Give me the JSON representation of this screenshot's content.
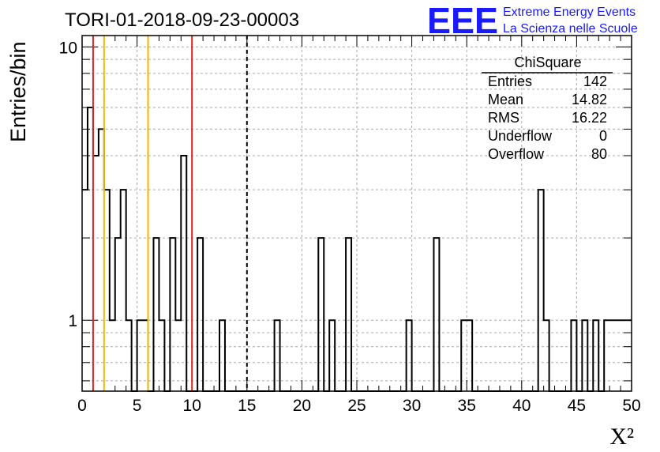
{
  "chart_data": {
    "type": "bar",
    "histogram_name": "ChiSquare",
    "title": "TORI-01-2018-09-23-00003",
    "xlabel": "X²",
    "ylabel": "Entries/bin",
    "xlim": [
      0,
      50
    ],
    "ylim": [
      0.55,
      11
    ],
    "log_y": true,
    "grid": true,
    "bin_width": 0.5,
    "x_ticks": [
      "0",
      "5",
      "10",
      "15",
      "20",
      "25",
      "30",
      "35",
      "40",
      "45",
      "50"
    ],
    "y_ticks": [
      "1",
      "10"
    ],
    "bins": [
      {
        "x": 0.0,
        "y": 3
      },
      {
        "x": 0.5,
        "y": 6
      },
      {
        "x": 1.0,
        "y": 4
      },
      {
        "x": 1.5,
        "y": 5
      },
      {
        "x": 2.0,
        "y": 3
      },
      {
        "x": 2.5,
        "y": 1
      },
      {
        "x": 3.0,
        "y": 2
      },
      {
        "x": 3.5,
        "y": 3
      },
      {
        "x": 4.0,
        "y": 1
      },
      {
        "x": 5.0,
        "y": 1
      },
      {
        "x": 5.5,
        "y": 1
      },
      {
        "x": 6.5,
        "y": 2
      },
      {
        "x": 7.0,
        "y": 1
      },
      {
        "x": 8.0,
        "y": 2
      },
      {
        "x": 8.5,
        "y": 1
      },
      {
        "x": 9.0,
        "y": 4
      },
      {
        "x": 10.5,
        "y": 2
      },
      {
        "x": 12.5,
        "y": 1
      },
      {
        "x": 17.5,
        "y": 1
      },
      {
        "x": 21.5,
        "y": 2
      },
      {
        "x": 22.5,
        "y": 1
      },
      {
        "x": 24.0,
        "y": 2
      },
      {
        "x": 29.5,
        "y": 1
      },
      {
        "x": 32.0,
        "y": 2
      },
      {
        "x": 34.5,
        "y": 1
      },
      {
        "x": 35.0,
        "y": 1
      },
      {
        "x": 41.5,
        "y": 3
      },
      {
        "x": 42.0,
        "y": 1
      },
      {
        "x": 44.5,
        "y": 1
      },
      {
        "x": 45.5,
        "y": 1
      },
      {
        "x": 46.5,
        "y": 1
      },
      {
        "x": 47.5,
        "y": 1
      },
      {
        "x": 48.0,
        "y": 1
      },
      {
        "x": 48.5,
        "y": 1
      },
      {
        "x": 49.0,
        "y": 1
      },
      {
        "x": 49.5,
        "y": 1
      }
    ],
    "reference_lines": [
      {
        "x": 1,
        "color": "#e02020"
      },
      {
        "x": 2,
        "color": "#f0b800"
      },
      {
        "x": 6,
        "color": "#f0b800"
      },
      {
        "x": 10,
        "color": "#e02020"
      },
      {
        "x": 15,
        "color": "#000000",
        "dashed": true
      }
    ],
    "stats_box": {
      "title": "ChiSquare",
      "rows": [
        {
          "label": "Entries",
          "value": "142"
        },
        {
          "label": "Mean",
          "value": "14.82"
        },
        {
          "label": "RMS",
          "value": "16.22"
        },
        {
          "label": "Underflow",
          "value": "0"
        },
        {
          "label": "Overflow",
          "value": "80"
        }
      ]
    }
  },
  "logo": {
    "mark": "EEE",
    "line1": "Extreme Energy Events",
    "line2": "La Scienza nelle Scuole",
    "color": "#1a1aff"
  }
}
